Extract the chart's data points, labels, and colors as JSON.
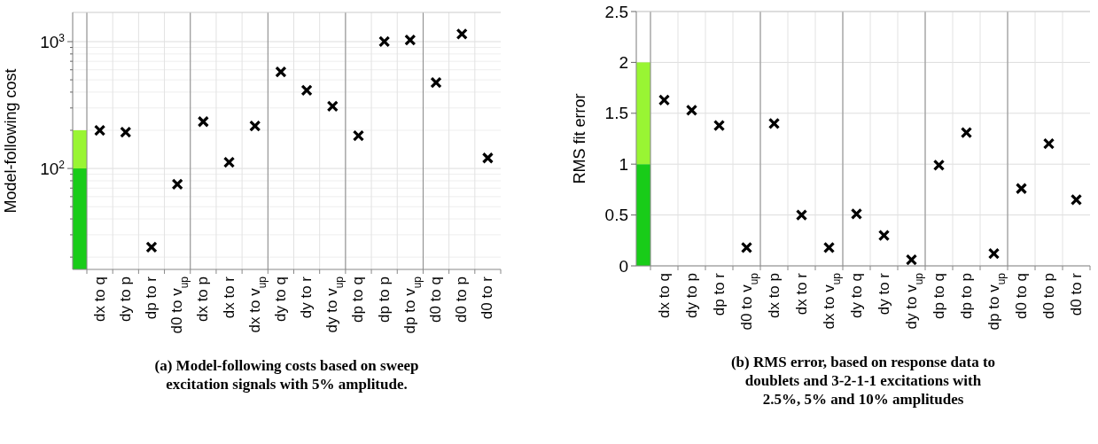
{
  "chart_data": [
    {
      "type": "scatter",
      "title": "(a) Model-following costs based on sweep excitation signals with 5% amplitude.",
      "ylabel": "Model-following cost",
      "categories": [
        null,
        "dx to q",
        "dy to p",
        "dp to r",
        "d0 to v$_{up}$",
        "dx to p",
        "dx to r",
        "dx to v$_{up}$",
        "dy to q",
        "dy to r",
        "dy to v$_{up}$",
        "dp to q",
        "dp to p",
        "dp to v$_{up}$",
        "d0 to q",
        "d0 to p",
        "d0 to r"
      ],
      "series": [
        {
          "type": "bar",
          "color": "#99f533",
          "values": [
            200,
            null,
            null,
            null,
            null,
            null,
            null,
            null,
            null,
            null,
            null,
            null,
            null,
            null,
            null,
            null,
            null
          ]
        },
        {
          "type": "bar",
          "color": "#19cc19",
          "values": [
            100,
            null,
            null,
            null,
            null,
            null,
            null,
            null,
            null,
            null,
            null,
            null,
            null,
            null,
            null,
            null,
            null
          ]
        },
        {
          "color": "#000000",
          "values": [
            null,
            200,
            193,
            24,
            75,
            234,
            112,
            216,
            577,
            413,
            309,
            181,
            1000,
            1030,
            476,
            1150,
            121
          ]
        }
      ],
      "log": true,
      "ylim": [
        16,
        1700
      ],
      "yticks": [
        {
          "value": 20,
          "label": null
        },
        {
          "value": 30,
          "label": null
        },
        {
          "value": 40,
          "label": null
        },
        {
          "value": 50,
          "label": null
        },
        {
          "value": 60,
          "label": null
        },
        {
          "value": 70,
          "label": null
        },
        {
          "value": 80,
          "label": null
        },
        {
          "value": 90,
          "label": null
        },
        {
          "value": 100,
          "label": "10$^{2}$"
        },
        {
          "value": 200,
          "label": null
        },
        {
          "value": 300,
          "label": null
        },
        {
          "value": 400,
          "label": null
        },
        {
          "value": 500,
          "label": null
        },
        {
          "value": 600,
          "label": null
        },
        {
          "value": 700,
          "label": null
        },
        {
          "value": 800,
          "label": null
        },
        {
          "value": 900,
          "label": null
        },
        {
          "value": 1000,
          "label": "10$^{3}$"
        }
      ],
      "grid": true,
      "marker": "cross"
    },
    {
      "type": "scatter",
      "title": "(b) RMS error, based on response data to doublets and 3-2-1-1 excitations with 2.5%, 5% and 10% amplitudes",
      "ylabel": "RMS fit error",
      "categories": [
        null,
        "dx to q",
        "dy to p",
        "dp to r",
        "d0 to v$_{up}$",
        "dx to p",
        "dx to r",
        "dx to v$_{up}$",
        "dy to q",
        "dy to r",
        "dy to v$_{up}$",
        "dp to q",
        "dp to p",
        "dp to v$_{up}$",
        "d0 to q",
        "d0 to p",
        "d0 to r"
      ],
      "series": [
        {
          "type": "bar",
          "color": "#19cc19",
          "values": [
            1,
            null,
            null,
            null,
            null,
            null,
            null,
            null,
            null,
            null,
            null,
            null,
            null,
            null,
            null,
            null,
            null
          ]
        },
        {
          "type": "bar",
          "color": "#99f533",
          "values": [
            1,
            null,
            null,
            null,
            null,
            null,
            null,
            null,
            null,
            null,
            null,
            null,
            null,
            null,
            null,
            null,
            null
          ]
        },
        {
          "color": "#000000",
          "values": [
            null,
            1.63,
            1.53,
            1.38,
            0.18,
            1.4,
            0.5,
            0.18,
            0.51,
            0.3,
            0.06,
            0.99,
            1.31,
            0.12,
            0.76,
            1.2,
            0.65
          ]
        }
      ],
      "stacked": true,
      "ylim": [
        0,
        2.5
      ],
      "yticks": [
        0,
        0.5,
        1,
        1.5,
        2,
        2.5
      ],
      "grid": true,
      "marker": "cross"
    }
  ]
}
